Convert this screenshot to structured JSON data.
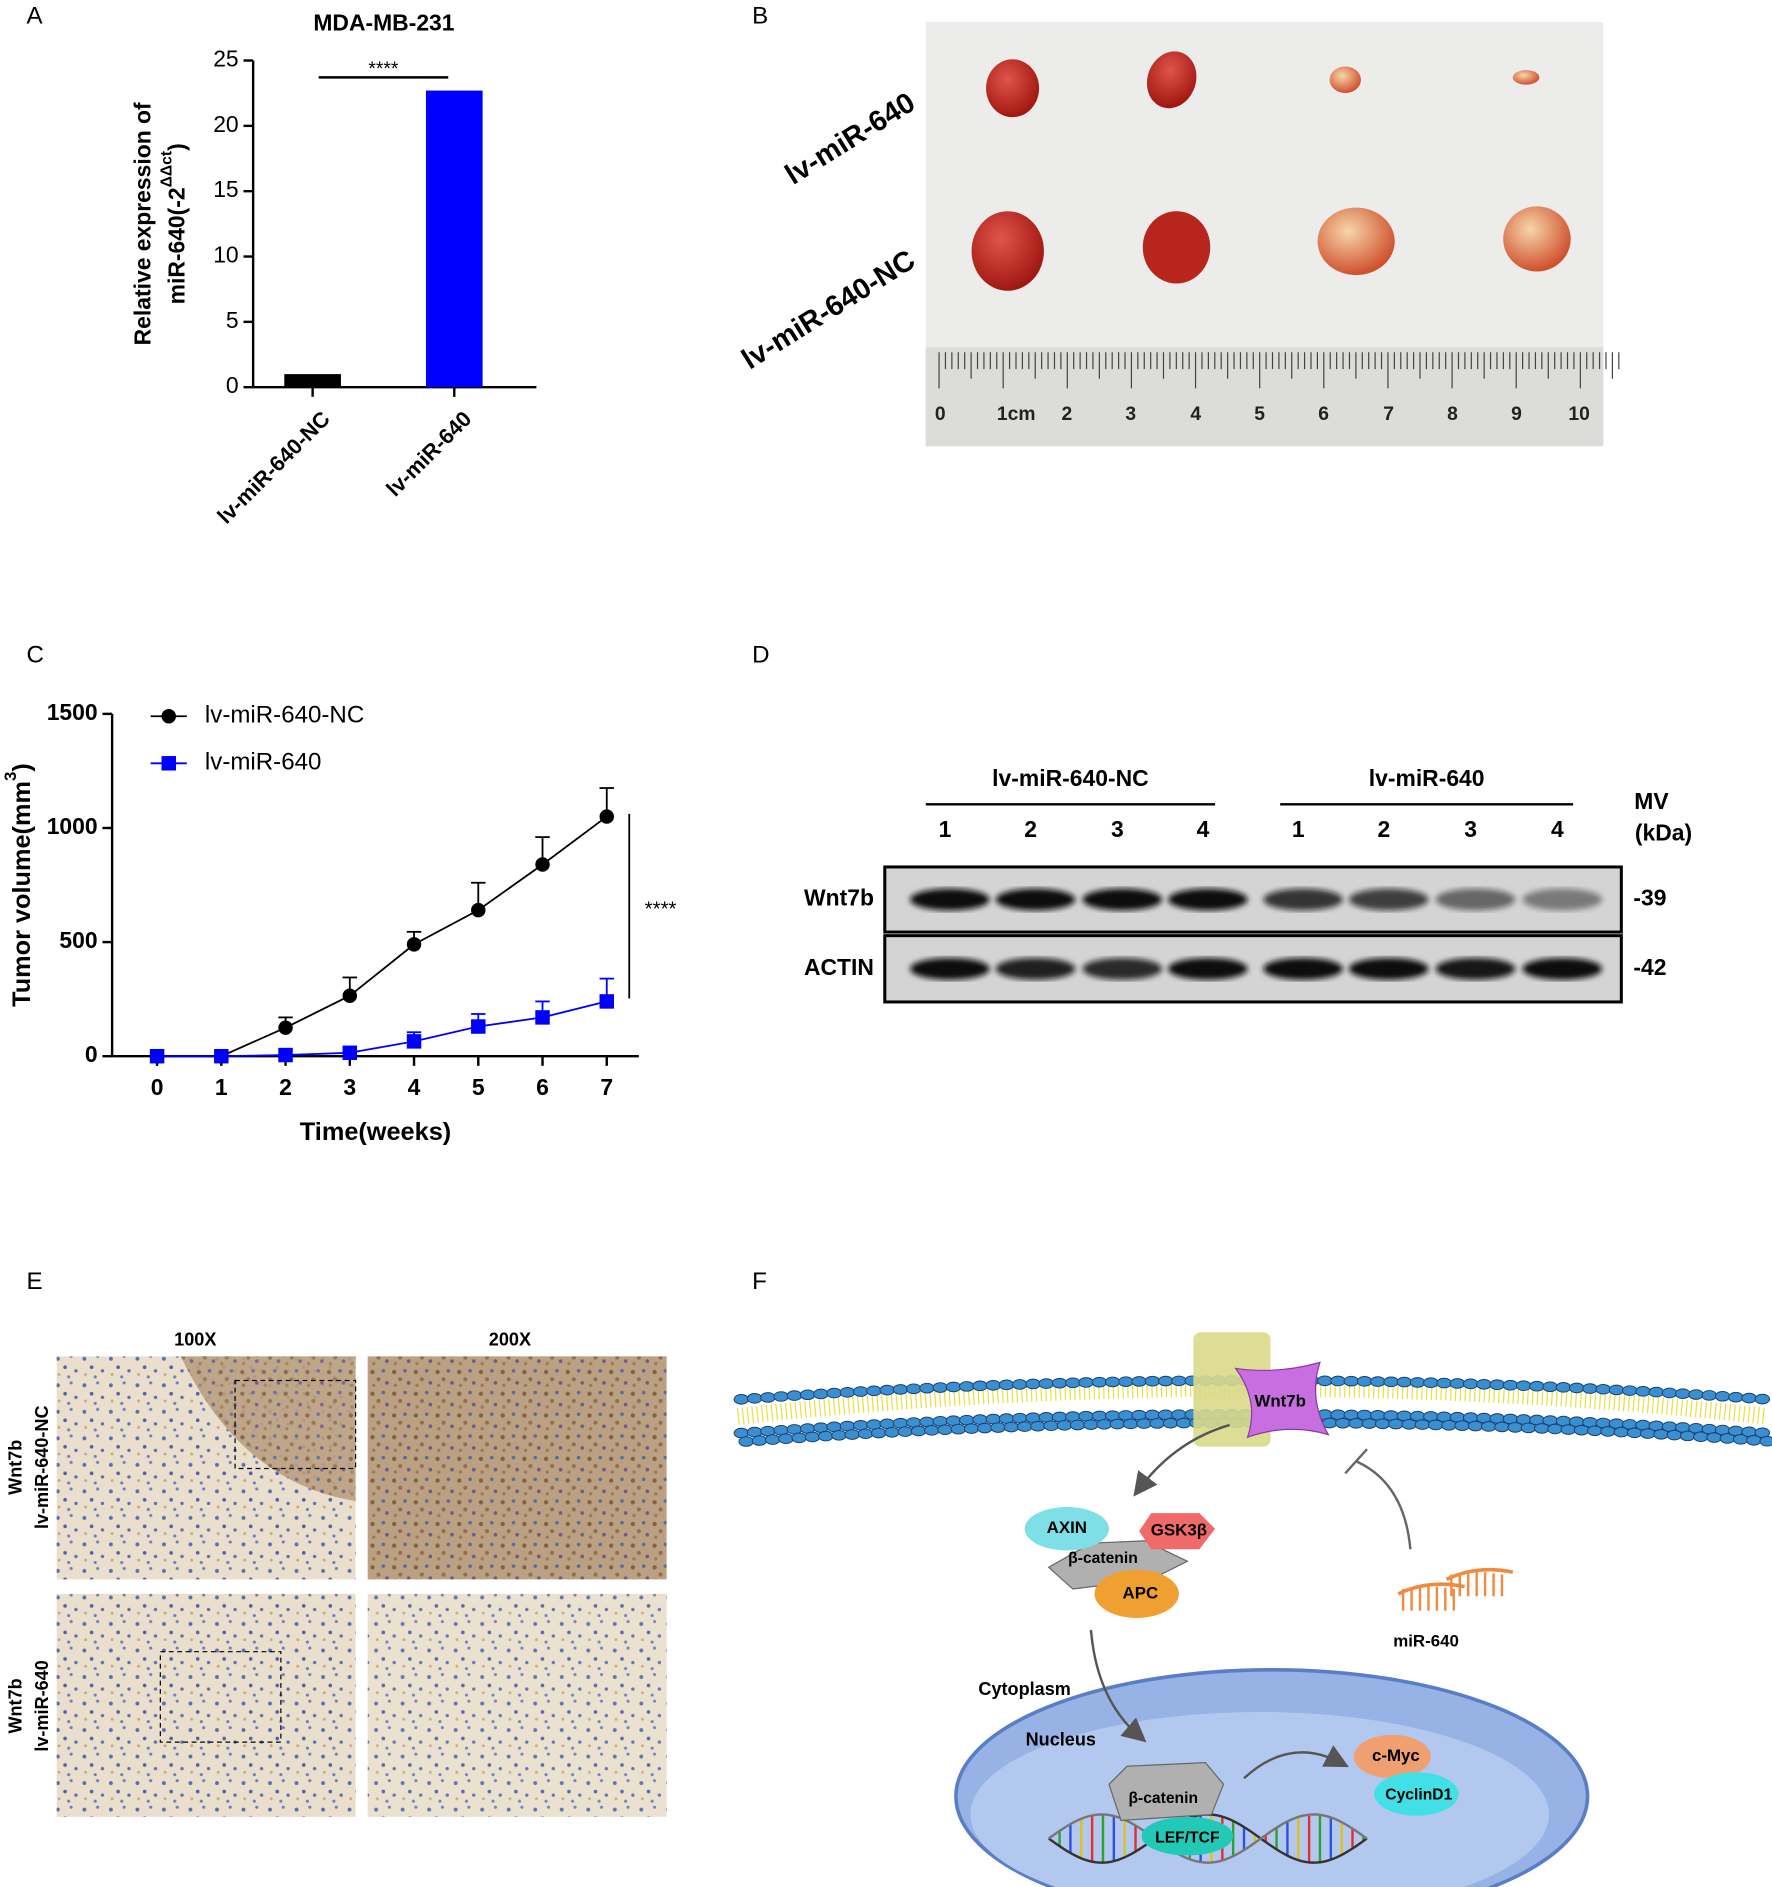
{
  "panels": [
    "A",
    "B",
    "C",
    "D",
    "E",
    "F"
  ],
  "chart_data": [
    {
      "type": "bar",
      "title": "MDA-MB-231",
      "ylabel": [
        "Relative expression of",
        "miR-640(-2",
        "ΔΔct",
        ")"
      ],
      "categories": [
        "lv-miR-640-NC",
        "lv-miR-640"
      ],
      "values": [
        1,
        22.7
      ],
      "colors": [
        "#000000",
        "#0000ff"
      ],
      "ylim": [
        0,
        25
      ],
      "yticks": [
        0,
        5,
        10,
        15,
        20,
        25
      ],
      "annotation": "****"
    },
    {
      "type": "line",
      "ylabel": [
        "Tumor volume(mm",
        "3",
        ")"
      ],
      "xlabel": "Time(weeks)",
      "x": [
        0,
        1,
        2,
        3,
        4,
        5,
        6,
        7
      ],
      "xlim": [
        -0.7,
        7.5
      ],
      "xticks": [
        0,
        1,
        2,
        3,
        4,
        5,
        6,
        7
      ],
      "ylim": [
        0,
        1500
      ],
      "yticks": [
        0,
        500,
        1000,
        1500
      ],
      "annotation": "****",
      "series": [
        {
          "name": "lv-miR-640-NC",
          "color": "#000000",
          "marker": "circle",
          "values": [
            0,
            0,
            125,
            265,
            490,
            640,
            840,
            1050
          ],
          "errors": [
            0,
            0,
            45,
            80,
            55,
            120,
            120,
            125
          ]
        },
        {
          "name": "lv-miR-640",
          "color": "#0000ff",
          "marker": "square",
          "values": [
            0,
            0,
            5,
            15,
            65,
            130,
            170,
            240
          ],
          "errors": [
            0,
            0,
            0,
            5,
            40,
            55,
            70,
            100
          ]
        }
      ]
    }
  ],
  "photo": {
    "rows": [
      "lv-miR-640",
      "lv-miR-640-NC"
    ],
    "ruler": [
      "0",
      "1cm",
      "2",
      "3",
      "4",
      "5",
      "6",
      "7",
      "8",
      "9",
      "10"
    ]
  },
  "blot": {
    "groups": [
      {
        "name": "lv-miR-640-NC",
        "lanes": [
          "1",
          "2",
          "3",
          "4"
        ]
      },
      {
        "name": "lv-miR-640",
        "lanes": [
          "1",
          "2",
          "3",
          "4"
        ]
      }
    ],
    "mw_title": [
      "MV",
      "(kDa)"
    ],
    "rows": [
      {
        "name": "Wnt7b",
        "mw": "-39"
      },
      {
        "name": "ACTIN",
        "mw": "-42"
      }
    ]
  },
  "ihc": {
    "columns": [
      "100X",
      "200X"
    ],
    "rows": [
      [
        "Wnt7b",
        "lv-miR-640-NC"
      ],
      [
        "Wnt7b",
        "lv-miR-640"
      ]
    ]
  },
  "diagram": {
    "receptor": "Wnt7b",
    "axin": "AXIN",
    "gsk": "GSK3β",
    "catenin": "β-catenin",
    "apc": "APC",
    "mirna": "miR-640",
    "cytoplasm": "Cytoplasm",
    "nucleus": "Nucleus",
    "nuclear_catenin": "β-catenin",
    "lef": "LEF/TCF",
    "myc": "c-Myc",
    "cyclin": "CyclinD1"
  }
}
